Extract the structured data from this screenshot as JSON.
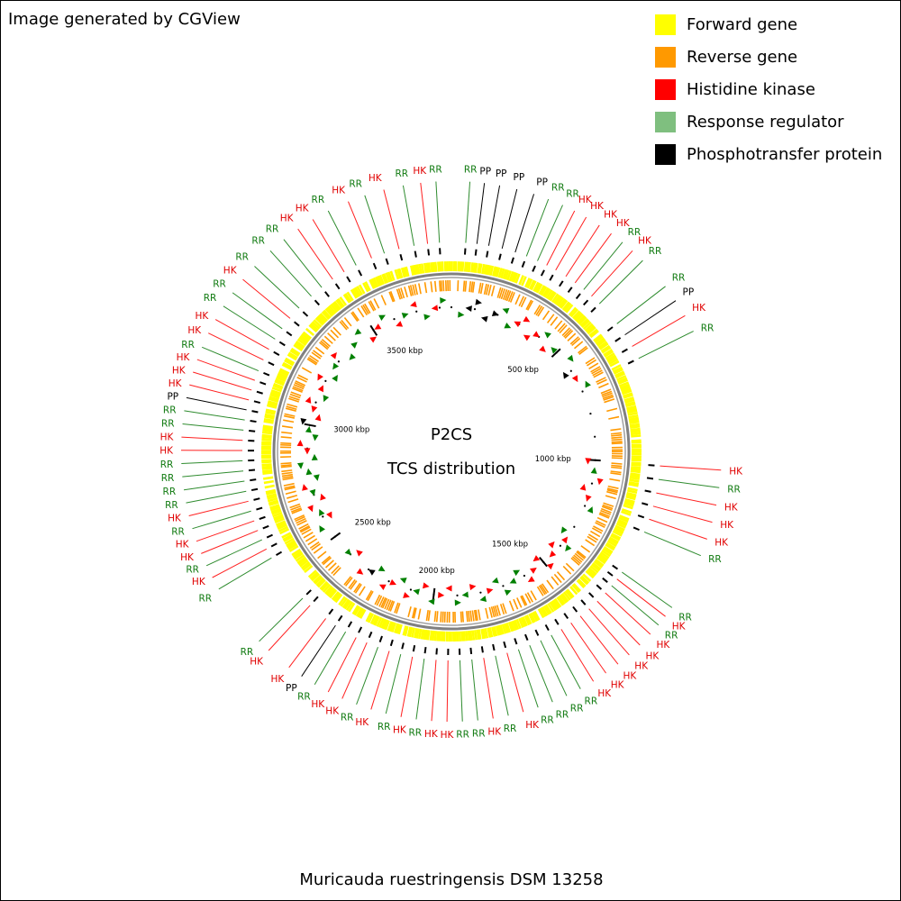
{
  "credit": "Image generated by CGView",
  "legend": [
    {
      "label": "Forward gene",
      "color": "#ffff00"
    },
    {
      "label": "Reverse gene",
      "color": "#ff9900"
    },
    {
      "label": "Histidine kinase",
      "color": "#ff0000"
    },
    {
      "label": "Response regulator",
      "color": "#7fbf7f"
    },
    {
      "label": "Phosphotransfer protein",
      "color": "#000000"
    }
  ],
  "map": {
    "title": "P2CS",
    "subtitle": "TCS distribution",
    "genome_length_kbp": 3850,
    "ruler_ticks_kbp": [
      500,
      1000,
      1500,
      2000,
      2500,
      3000,
      3500
    ],
    "ruler_unit": "kbp",
    "feature_types": {
      "HK": {
        "name": "Histidine kinase",
        "color": "#ff0000",
        "text_color": "#e00000",
        "line_color": "#ff2020"
      },
      "RR": {
        "name": "Response regulator",
        "color": "#008000",
        "text_color": "#107a10",
        "line_color": "#2e8b2e"
      },
      "PP": {
        "name": "Phosphotransfer protein",
        "color": "#000000",
        "text_color": "#000000",
        "line_color": "#000000"
      }
    },
    "features": [
      {
        "kbp": 42,
        "type": "RR"
      },
      {
        "kbp": 75,
        "type": "PP"
      },
      {
        "kbp": 110,
        "type": "PP"
      },
      {
        "kbp": 150,
        "type": "PP"
      },
      {
        "kbp": 190,
        "type": "PP"
      },
      {
        "kbp": 225,
        "type": "RR"
      },
      {
        "kbp": 260,
        "type": "RR"
      },
      {
        "kbp": 290,
        "type": "HK"
      },
      {
        "kbp": 320,
        "type": "HK"
      },
      {
        "kbp": 355,
        "type": "HK"
      },
      {
        "kbp": 388,
        "type": "HK"
      },
      {
        "kbp": 420,
        "type": "RR"
      },
      {
        "kbp": 450,
        "type": "HK"
      },
      {
        "kbp": 482,
        "type": "RR"
      },
      {
        "kbp": 560,
        "type": "RR"
      },
      {
        "kbp": 600,
        "type": "PP"
      },
      {
        "kbp": 640,
        "type": "HK"
      },
      {
        "kbp": 680,
        "type": "RR"
      },
      {
        "kbp": 1005,
        "type": "HK"
      },
      {
        "kbp": 1045,
        "type": "RR"
      },
      {
        "kbp": 1085,
        "type": "HK"
      },
      {
        "kbp": 1125,
        "type": "HK"
      },
      {
        "kbp": 1165,
        "type": "HK"
      },
      {
        "kbp": 1205,
        "type": "RR"
      },
      {
        "kbp": 1340,
        "type": "RR"
      },
      {
        "kbp": 1365,
        "type": "HK"
      },
      {
        "kbp": 1390,
        "type": "RR"
      },
      {
        "kbp": 1418,
        "type": "HK"
      },
      {
        "kbp": 1452,
        "type": "HK"
      },
      {
        "kbp": 1485,
        "type": "HK"
      },
      {
        "kbp": 1518,
        "type": "HK"
      },
      {
        "kbp": 1552,
        "type": "HK"
      },
      {
        "kbp": 1586,
        "type": "HK"
      },
      {
        "kbp": 1620,
        "type": "RR"
      },
      {
        "kbp": 1655,
        "type": "RR"
      },
      {
        "kbp": 1690,
        "type": "RR"
      },
      {
        "kbp": 1725,
        "type": "RR"
      },
      {
        "kbp": 1760,
        "type": "HK"
      },
      {
        "kbp": 1795,
        "type": "RR"
      },
      {
        "kbp": 1830,
        "type": "HK"
      },
      {
        "kbp": 1865,
        "type": "RR"
      },
      {
        "kbp": 1900,
        "type": "RR"
      },
      {
        "kbp": 1935,
        "type": "HK"
      },
      {
        "kbp": 1970,
        "type": "HK"
      },
      {
        "kbp": 2005,
        "type": "RR"
      },
      {
        "kbp": 2040,
        "type": "HK"
      },
      {
        "kbp": 2075,
        "type": "RR"
      },
      {
        "kbp": 2110,
        "type": "HK"
      },
      {
        "kbp": 2145,
        "type": "RR"
      },
      {
        "kbp": 2180,
        "type": "HK"
      },
      {
        "kbp": 2215,
        "type": "HK"
      },
      {
        "kbp": 2250,
        "type": "RR"
      },
      {
        "kbp": 2285,
        "type": "PP"
      },
      {
        "kbp": 2320,
        "type": "HK"
      },
      {
        "kbp": 2380,
        "type": "HK"
      },
      {
        "kbp": 2410,
        "type": "RR"
      },
      {
        "kbp": 2560,
        "type": "RR"
      },
      {
        "kbp": 2590,
        "type": "HK"
      },
      {
        "kbp": 2620,
        "type": "RR"
      },
      {
        "kbp": 2650,
        "type": "HK"
      },
      {
        "kbp": 2680,
        "type": "HK"
      },
      {
        "kbp": 2710,
        "type": "RR"
      },
      {
        "kbp": 2740,
        "type": "HK"
      },
      {
        "kbp": 2770,
        "type": "RR"
      },
      {
        "kbp": 2800,
        "type": "RR"
      },
      {
        "kbp": 2830,
        "type": "RR"
      },
      {
        "kbp": 2860,
        "type": "RR"
      },
      {
        "kbp": 2890,
        "type": "HK"
      },
      {
        "kbp": 2920,
        "type": "HK"
      },
      {
        "kbp": 2950,
        "type": "RR"
      },
      {
        "kbp": 2980,
        "type": "RR"
      },
      {
        "kbp": 3010,
        "type": "PP"
      },
      {
        "kbp": 3040,
        "type": "HK"
      },
      {
        "kbp": 3070,
        "type": "HK"
      },
      {
        "kbp": 3100,
        "type": "HK"
      },
      {
        "kbp": 3130,
        "type": "RR"
      },
      {
        "kbp": 3165,
        "type": "HK"
      },
      {
        "kbp": 3200,
        "type": "HK"
      },
      {
        "kbp": 3235,
        "type": "RR"
      },
      {
        "kbp": 3272,
        "type": "RR"
      },
      {
        "kbp": 3310,
        "type": "HK"
      },
      {
        "kbp": 3350,
        "type": "RR"
      },
      {
        "kbp": 3400,
        "type": "RR"
      },
      {
        "kbp": 3440,
        "type": "RR"
      },
      {
        "kbp": 3480,
        "type": "HK"
      },
      {
        "kbp": 3520,
        "type": "HK"
      },
      {
        "kbp": 3560,
        "type": "RR"
      },
      {
        "kbp": 3610,
        "type": "HK"
      },
      {
        "kbp": 3650,
        "type": "RR"
      },
      {
        "kbp": 3695,
        "type": "HK"
      },
      {
        "kbp": 3740,
        "type": "RR"
      },
      {
        "kbp": 3780,
        "type": "HK"
      },
      {
        "kbp": 3815,
        "type": "RR"
      }
    ]
  },
  "organism": "Muricauda ruestringensis DSM 13258"
}
